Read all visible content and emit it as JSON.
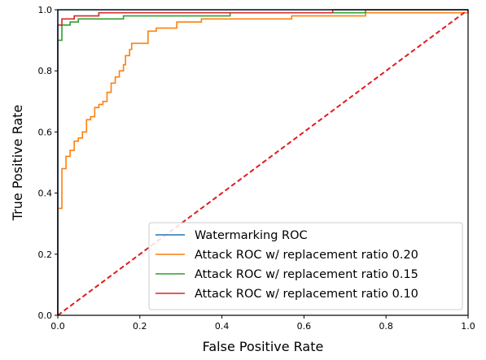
{
  "chart_data": {
    "type": "line",
    "title": "",
    "xlabel": "False Positive Rate",
    "ylabel": "True Positive Rate",
    "xlim": [
      0.0,
      1.0
    ],
    "ylim": [
      0.0,
      1.0
    ],
    "x_ticks": [
      "0.0",
      "0.2",
      "0.4",
      "0.6",
      "0.8",
      "1.0"
    ],
    "y_ticks": [
      "0.0",
      "0.2",
      "0.4",
      "0.6",
      "0.8",
      "1.0"
    ],
    "grid": false,
    "legend_position": "lower-right",
    "series": [
      {
        "name": "Watermarking ROC",
        "color": "#1f77b4",
        "style": "solid",
        "points": [
          [
            0.0,
            0.0
          ],
          [
            0.0,
            1.0
          ],
          [
            1.0,
            1.0
          ]
        ]
      },
      {
        "name": "Attack ROC w/ replacement ratio 0.20",
        "color": "#ff7f0e",
        "style": "solid",
        "points": [
          [
            0.0,
            0.0
          ],
          [
            0.0,
            0.35
          ],
          [
            0.01,
            0.35
          ],
          [
            0.01,
            0.48
          ],
          [
            0.02,
            0.48
          ],
          [
            0.02,
            0.52
          ],
          [
            0.03,
            0.52
          ],
          [
            0.03,
            0.54
          ],
          [
            0.04,
            0.54
          ],
          [
            0.04,
            0.57
          ],
          [
            0.05,
            0.57
          ],
          [
            0.05,
            0.58
          ],
          [
            0.06,
            0.58
          ],
          [
            0.06,
            0.6
          ],
          [
            0.07,
            0.6
          ],
          [
            0.07,
            0.64
          ],
          [
            0.08,
            0.64
          ],
          [
            0.08,
            0.65
          ],
          [
            0.09,
            0.65
          ],
          [
            0.09,
            0.68
          ],
          [
            0.1,
            0.68
          ],
          [
            0.1,
            0.69
          ],
          [
            0.11,
            0.69
          ],
          [
            0.11,
            0.7
          ],
          [
            0.12,
            0.7
          ],
          [
            0.12,
            0.73
          ],
          [
            0.13,
            0.73
          ],
          [
            0.13,
            0.76
          ],
          [
            0.14,
            0.76
          ],
          [
            0.14,
            0.78
          ],
          [
            0.15,
            0.78
          ],
          [
            0.15,
            0.8
          ],
          [
            0.16,
            0.8
          ],
          [
            0.16,
            0.82
          ],
          [
            0.165,
            0.82
          ],
          [
            0.165,
            0.85
          ],
          [
            0.175,
            0.85
          ],
          [
            0.175,
            0.87
          ],
          [
            0.18,
            0.87
          ],
          [
            0.18,
            0.89
          ],
          [
            0.2,
            0.89
          ],
          [
            0.21,
            0.89
          ],
          [
            0.21,
            0.89
          ],
          [
            0.22,
            0.89
          ],
          [
            0.22,
            0.93
          ],
          [
            0.24,
            0.93
          ],
          [
            0.24,
            0.94
          ],
          [
            0.29,
            0.94
          ],
          [
            0.29,
            0.96
          ],
          [
            0.35,
            0.96
          ],
          [
            0.35,
            0.97
          ],
          [
            0.57,
            0.97
          ],
          [
            0.57,
            0.98
          ],
          [
            0.75,
            0.98
          ],
          [
            0.75,
            0.99
          ],
          [
            1.0,
            0.99
          ],
          [
            1.0,
            1.0
          ]
        ]
      },
      {
        "name": "Attack ROC w/ replacement ratio 0.15",
        "color": "#2ca02c",
        "style": "solid",
        "points": [
          [
            0.0,
            0.0
          ],
          [
            0.0,
            0.9
          ],
          [
            0.01,
            0.9
          ],
          [
            0.01,
            0.95
          ],
          [
            0.03,
            0.95
          ],
          [
            0.03,
            0.96
          ],
          [
            0.05,
            0.96
          ],
          [
            0.05,
            0.97
          ],
          [
            0.16,
            0.97
          ],
          [
            0.16,
            0.98
          ],
          [
            0.42,
            0.98
          ],
          [
            0.42,
            0.99
          ],
          [
            0.75,
            0.99
          ],
          [
            0.75,
            1.0
          ],
          [
            1.0,
            1.0
          ]
        ]
      },
      {
        "name": "Attack ROC w/ replacement ratio 0.10",
        "color": "#d62728",
        "style": "solid",
        "points": [
          [
            0.0,
            0.0
          ],
          [
            0.0,
            0.95
          ],
          [
            0.01,
            0.95
          ],
          [
            0.01,
            0.97
          ],
          [
            0.04,
            0.97
          ],
          [
            0.04,
            0.98
          ],
          [
            0.1,
            0.98
          ],
          [
            0.1,
            0.99
          ],
          [
            0.67,
            0.99
          ],
          [
            0.67,
            1.0
          ],
          [
            1.0,
            1.0
          ]
        ]
      },
      {
        "name": "",
        "color": "#e31a1c",
        "style": "dashed",
        "points": [
          [
            0.0,
            0.0
          ],
          [
            1.0,
            1.0
          ]
        ]
      }
    ]
  }
}
